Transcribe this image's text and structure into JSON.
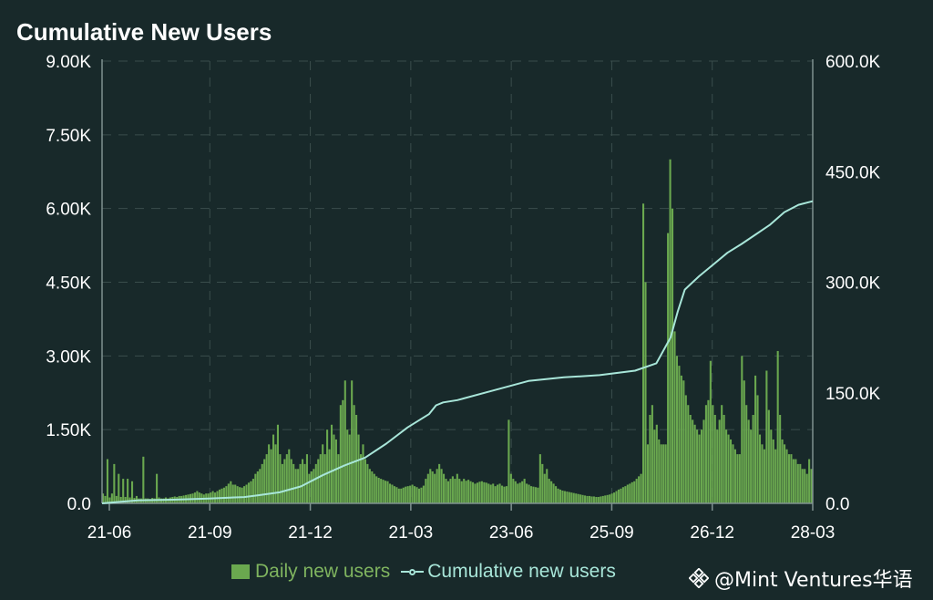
{
  "title": "Cumulative New Users",
  "watermark": "@Mint Ventures华语",
  "colors": {
    "background": "#18292a",
    "bars": "#6aa84f",
    "line": "#a8e6d9",
    "grid": "#3a4d4c",
    "axis": "#7f9190",
    "legend_bar_text": "#7fb45f",
    "legend_line_text": "#a8e6d9"
  },
  "legend": {
    "bar_label": "Daily new users",
    "line_label": "Cumulative new users"
  },
  "chart_data": {
    "type": "bar+line",
    "x_tick_labels": [
      "21-06",
      "21-09",
      "21-12",
      "21-03",
      "23-06",
      "25-09",
      "26-12",
      "28-03"
    ],
    "left_axis": {
      "ylim": [
        0,
        9000
      ],
      "ticks": [
        0,
        1500,
        3000,
        4500,
        6000,
        7500,
        9000
      ],
      "tick_labels": [
        "0.0",
        "1.50K",
        "3.00K",
        "4.50K",
        "6.00K",
        "7.50K",
        "9.00K"
      ]
    },
    "right_axis": {
      "ylim": [
        0,
        600000
      ],
      "ticks": [
        0,
        150000,
        300000,
        450000,
        600000
      ],
      "tick_labels": [
        "0.0",
        "150.0K",
        "300.0K",
        "450.0K",
        "600.0K"
      ]
    },
    "grid": true,
    "legend_position": "bottom-right",
    "series": [
      {
        "name": "Daily new users",
        "type": "bar",
        "axis": "left",
        "values": [
          200,
          150,
          900,
          120,
          200,
          800,
          150,
          600,
          130,
          500,
          130,
          500,
          120,
          450,
          110,
          150,
          100,
          100,
          950,
          100,
          100,
          90,
          110,
          100,
          600,
          120,
          100,
          100,
          120,
          100,
          120,
          130,
          140,
          130,
          150,
          150,
          160,
          170,
          180,
          190,
          200,
          220,
          250,
          220,
          200,
          180,
          200,
          200,
          220,
          250,
          220,
          250,
          280,
          300,
          320,
          350,
          400,
          450,
          380,
          380,
          350,
          330,
          320,
          350,
          380,
          420,
          450,
          500,
          600,
          650,
          700,
          800,
          900,
          1000,
          1200,
          1100,
          1400,
          1200,
          1600,
          1000,
          800,
          900,
          1000,
          1100,
          900,
          800,
          700,
          700,
          800,
          900,
          800,
          1000,
          600,
          650,
          700,
          800,
          900,
          1000,
          1200,
          1000,
          1500,
          1100,
          1600,
          1400,
          1300,
          1000,
          2000,
          2100,
          2500,
          1500,
          1400,
          2500,
          2000,
          1800,
          1400,
          1000,
          1200,
          900,
          800,
          700,
          650,
          600,
          550,
          520,
          500,
          480,
          460,
          450,
          400,
          380,
          350,
          330,
          300,
          300,
          320,
          340,
          350,
          360,
          380,
          350,
          330,
          300,
          320,
          360,
          500,
          600,
          700,
          650,
          600,
          700,
          800,
          700,
          600,
          500,
          450,
          500,
          550,
          500,
          600,
          500,
          450,
          500,
          460,
          480,
          450,
          430,
          400,
          420,
          440,
          450,
          430,
          420,
          400,
          380,
          400,
          350,
          380,
          400,
          360,
          340,
          350,
          1700,
          600,
          500,
          450,
          400,
          420,
          450,
          500,
          400,
          380,
          350,
          340,
          330,
          320,
          1000,
          800,
          600,
          700,
          500,
          450,
          400,
          350,
          300,
          280,
          260,
          250,
          240,
          230,
          220,
          210,
          200,
          190,
          180,
          170,
          160,
          150,
          150,
          140,
          140,
          130,
          130,
          140,
          150,
          160,
          170,
          180,
          200,
          220,
          250,
          280,
          300,
          330,
          350,
          380,
          400,
          430,
          450,
          500,
          550,
          600,
          6100,
          4500,
          1200,
          1800,
          2000,
          1500,
          1600,
          1300,
          1200,
          1200,
          1200,
          5500,
          7000,
          6000,
          3500,
          3000,
          2800,
          2600,
          2500,
          2200,
          2000,
          1800,
          1700,
          1600,
          1500,
          1400,
          1500,
          1700,
          2000,
          2100,
          2900,
          2000,
          1800,
          1500,
          1700,
          2000,
          1800,
          1500,
          1400,
          1300,
          1200,
          1100,
          1000,
          1000,
          3000,
          2500,
          2000,
          1700,
          1500,
          1800,
          2600,
          2200,
          1400,
          1200,
          1100,
          2700,
          1900,
          1500,
          1300,
          1100,
          3100,
          1800,
          1300,
          1200,
          1100,
          1000,
          1000,
          900,
          900,
          800,
          800,
          700,
          700,
          600,
          900,
          700
        ]
      },
      {
        "name": "Cumulative new users",
        "type": "line",
        "axis": "right",
        "x_fraction": [
          0,
          0.05,
          0.1,
          0.15,
          0.2,
          0.22,
          0.25,
          0.28,
          0.31,
          0.34,
          0.37,
          0.4,
          0.43,
          0.46,
          0.47,
          0.48,
          0.5,
          0.55,
          0.6,
          0.65,
          0.7,
          0.75,
          0.78,
          0.8,
          0.81,
          0.82,
          0.84,
          0.86,
          0.88,
          0.9,
          0.92,
          0.94,
          0.96,
          0.98,
          1.0
        ],
        "values": [
          0,
          4000,
          5000,
          6500,
          8500,
          11000,
          15000,
          23000,
          38000,
          51000,
          62000,
          81000,
          103000,
          121000,
          133000,
          137000,
          140000,
          153000,
          166000,
          171000,
          174000,
          180000,
          190000,
          225000,
          260000,
          290000,
          308000,
          324000,
          340000,
          352000,
          365000,
          378000,
          395000,
          405000,
          410000
        ]
      }
    ]
  }
}
